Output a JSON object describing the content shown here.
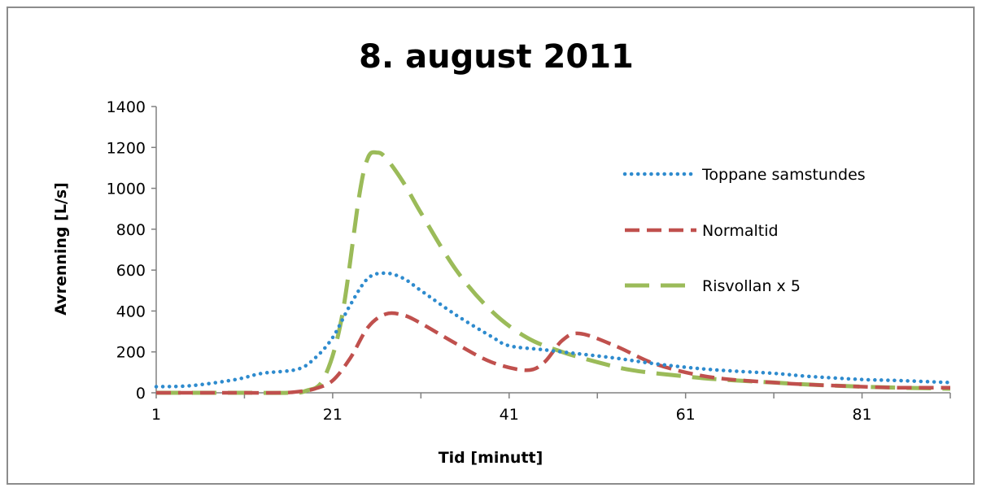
{
  "chart_data": {
    "type": "line",
    "title": "8. august 2011",
    "xlabel": "Tid [minutt]",
    "ylabel": "Avrenning [L/s]",
    "xlim": [
      1,
      91
    ],
    "ylim": [
      0,
      1400
    ],
    "x_ticks": [
      "1",
      "21",
      "41",
      "61",
      "81"
    ],
    "y_ticks": [
      "0",
      "200",
      "400",
      "600",
      "800",
      "1000",
      "1200",
      "1400"
    ],
    "legend_position": "right",
    "series": [
      {
        "name": "Toppane samstundes",
        "color": "#2e8bce",
        "style": "dotted",
        "x": [
          1,
          5,
          10,
          13,
          17,
          19,
          21,
          23,
          25,
          27,
          29,
          31,
          35,
          39,
          41,
          45,
          49,
          53,
          57,
          61,
          65,
          71,
          75,
          81,
          85,
          91
        ],
        "y": [
          30,
          35,
          65,
          95,
          115,
          170,
          270,
          430,
          560,
          585,
          560,
          500,
          380,
          275,
          230,
          210,
          190,
          170,
          145,
          125,
          110,
          95,
          80,
          65,
          60,
          50
        ]
      },
      {
        "name": "Normaltid",
        "color": "#c0504d",
        "style": "dashed",
        "x": [
          1,
          10,
          15,
          17,
          19,
          21,
          23,
          25,
          27,
          29,
          31,
          35,
          39,
          43,
          45,
          47,
          49,
          53,
          57,
          61,
          65,
          71,
          75,
          81,
          85,
          91
        ],
        "y": [
          0,
          0,
          0,
          5,
          20,
          60,
          170,
          320,
          385,
          380,
          340,
          240,
          150,
          110,
          150,
          255,
          290,
          230,
          150,
          100,
          70,
          50,
          40,
          30,
          25,
          25
        ]
      },
      {
        "name": "Risvollan x 5",
        "color": "#9bbb59",
        "style": "longdash",
        "x": [
          1,
          10,
          16,
          18,
          20,
          22,
          24,
          25,
          26,
          27,
          29,
          31,
          35,
          39,
          43,
          47,
          51,
          55,
          61,
          65,
          71,
          75,
          81,
          85,
          91
        ],
        "y": [
          0,
          0,
          0,
          10,
          70,
          360,
          960,
          1150,
          1175,
          1150,
          1030,
          880,
          600,
          400,
          270,
          200,
          150,
          110,
          80,
          65,
          50,
          40,
          30,
          25,
          20
        ]
      }
    ]
  }
}
